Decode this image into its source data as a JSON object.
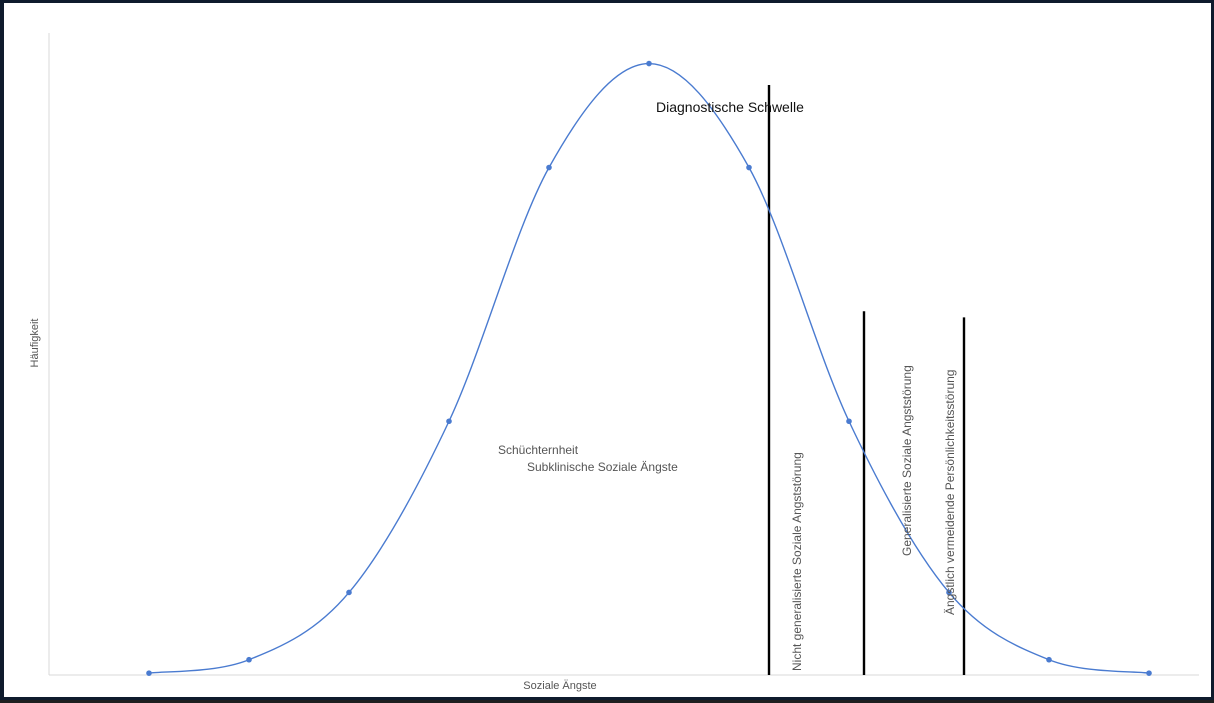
{
  "chart_data": {
    "type": "line",
    "title": "",
    "xlabel": "Soziale Ängste",
    "ylabel": "Häufigkeit",
    "x": [
      1,
      2,
      3,
      4,
      5,
      6,
      7,
      8,
      9,
      10,
      11
    ],
    "xlim": [
      0,
      11.5
    ],
    "ylim": [
      0,
      1.05
    ],
    "series": [
      {
        "values": [
          0.003,
          0.025,
          0.135,
          0.415,
          0.83,
          1.0,
          0.83,
          0.415,
          0.135,
          0.025,
          0.003
        ]
      }
    ],
    "thresholds": [
      {
        "x": 7.2,
        "top": 0.965,
        "label": "Diagnostische Schwelle",
        "orientation": "horizontal"
      },
      {
        "x": 8.15,
        "top": 0.595,
        "label": "Nicht generalisierte Soziale Angststörung",
        "orientation": "vertical"
      },
      {
        "x": 9.15,
        "top": 0.585,
        "label": "Generalisierte Soziale Angststörung",
        "orientation": "vertical"
      },
      {
        "x": 9.15,
        "top": 0.585,
        "label": "Ängstlich vermeidende Persönlichkeitsstörung",
        "orientation": "vertical"
      }
    ],
    "annotations": [
      "Schüchternheit",
      "Subklinische Soziale Ängste"
    ],
    "colors": {
      "curve": "#4a7bd0",
      "threshold": "#000000",
      "axis": "#d9d9d9"
    },
    "grid": false,
    "legend": "none"
  }
}
